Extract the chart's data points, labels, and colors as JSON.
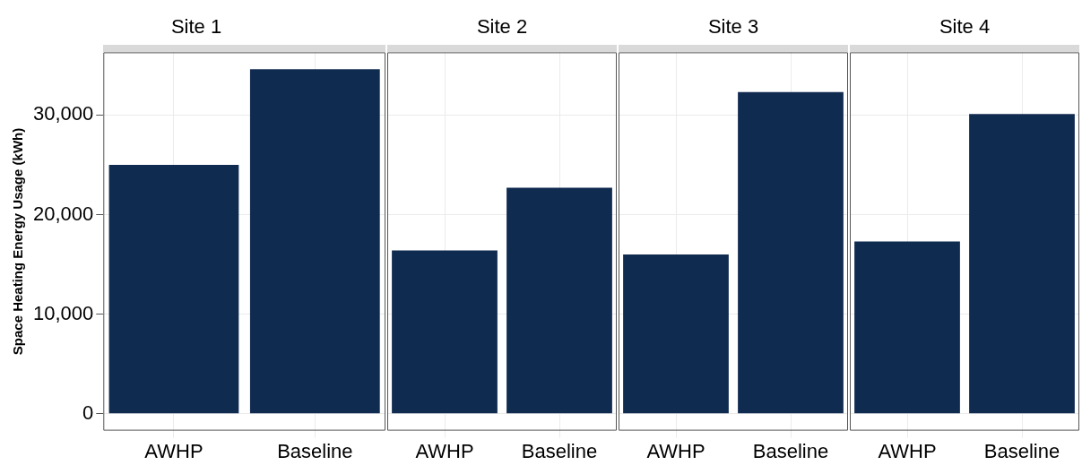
{
  "chart_data": [
    {
      "type": "bar",
      "title": "Site 1",
      "ylabel": "Space Heating Energy Usage (kWh)",
      "categories": [
        "AWHP",
        "Baseline"
      ],
      "values": [
        25000,
        34600
      ],
      "color": "#102b50",
      "ylim": [
        -1700,
        36300
      ],
      "yticks": [
        {
          "value": 0,
          "label": "0"
        },
        {
          "value": 10000,
          "label": "10,000"
        },
        {
          "value": 20000,
          "label": "20,000"
        },
        {
          "value": 30000,
          "label": "30,000"
        }
      ],
      "grid": true
    },
    {
      "type": "bar",
      "title": "Site 2",
      "categories": [
        "AWHP",
        "Baseline"
      ],
      "values": [
        16400,
        22700
      ],
      "color": "#102b50",
      "ylim": [
        -1700,
        36300
      ],
      "yticks": [
        0,
        10000,
        20000,
        30000
      ],
      "grid": true,
      "tick_labels": "x"
    },
    {
      "type": "bar",
      "title": "Site 3",
      "categories": [
        "AWHP",
        "Baseline"
      ],
      "values": [
        16000,
        32300
      ],
      "color": "#102b50",
      "ylim": [
        -1700,
        36300
      ],
      "yticks": [
        0,
        10000,
        20000,
        30000
      ],
      "grid": true,
      "tick_labels": "x"
    },
    {
      "type": "bar",
      "title": "Site 4",
      "categories": [
        "AWHP",
        "Baseline"
      ],
      "values": [
        17300,
        30100
      ],
      "color": "#102b50",
      "ylim": [
        -1700,
        36300
      ],
      "yticks": [
        0,
        10000,
        20000,
        30000
      ],
      "grid": true,
      "tick_labels": "x"
    }
  ]
}
